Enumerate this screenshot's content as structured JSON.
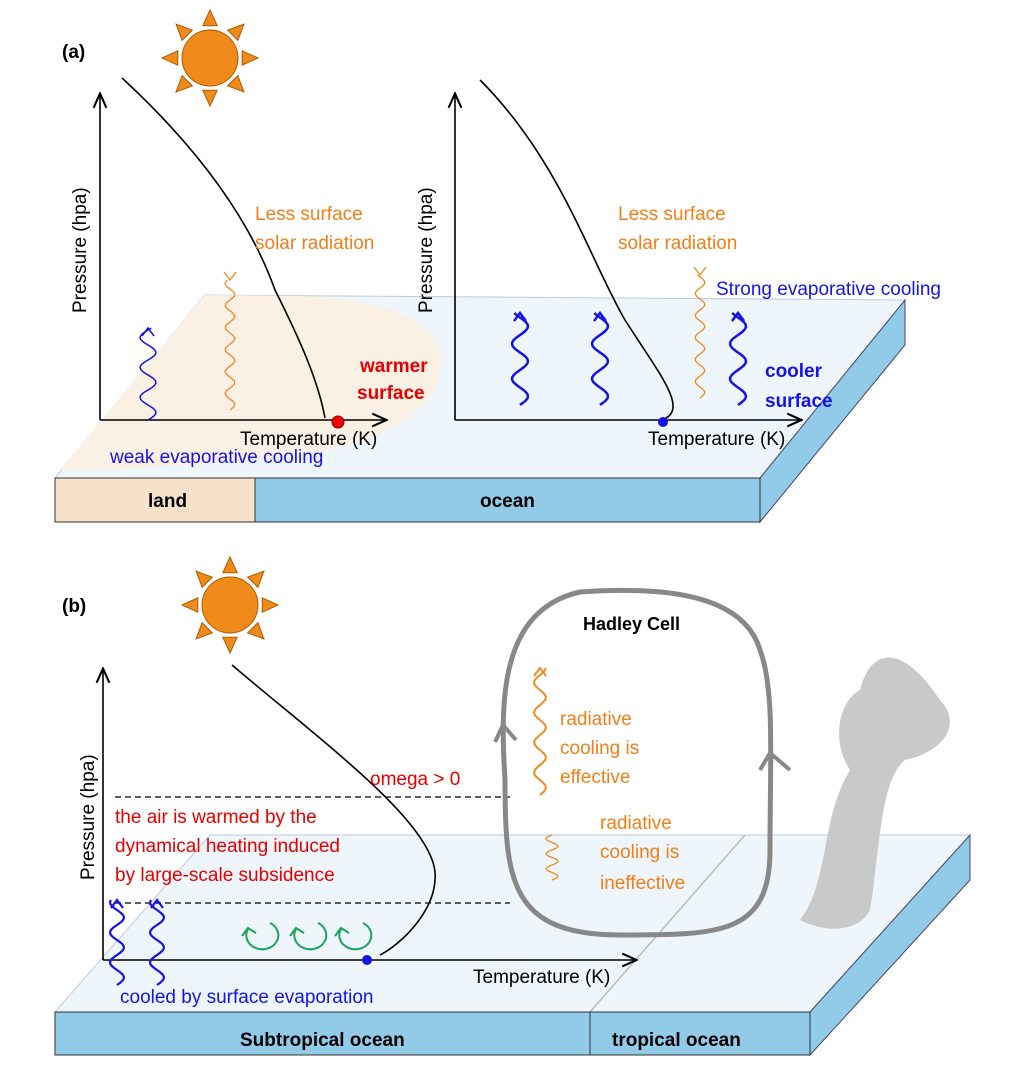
{
  "panel_a": {
    "label": "(a)",
    "left": {
      "y_axis": "Pressure (hpa)",
      "x_axis": "Temperature (K)",
      "radiation": [
        "Less surface",
        "solar radiation"
      ],
      "surface": [
        "warmer",
        "surface"
      ],
      "evaporation": "weak evaporative cooling"
    },
    "right": {
      "y_axis": "Pressure (hpa)",
      "x_axis": "Temperature (K)",
      "radiation": [
        "Less surface",
        "solar radiation"
      ],
      "surface": [
        "cooler",
        "surface"
      ],
      "evaporation": "Strong evaporative cooling"
    },
    "slab": [
      "land",
      "ocean"
    ]
  },
  "panel_b": {
    "label": "(b)",
    "y_axis": "Pressure (hpa)",
    "x_axis": "Temperature (K)",
    "omega": "omega > 0",
    "warming": [
      "the air is warmed by the",
      "dynamical heating induced",
      "by large-scale subsidence"
    ],
    "evaporation": "cooled by surface evaporation",
    "hadley": "Hadley Cell",
    "effective": [
      "radiative",
      "cooling is",
      "effective"
    ],
    "ineffective": [
      "radiative",
      "cooling is",
      "ineffective"
    ],
    "slab": [
      "Subtropical ocean",
      "tropical ocean"
    ]
  }
}
